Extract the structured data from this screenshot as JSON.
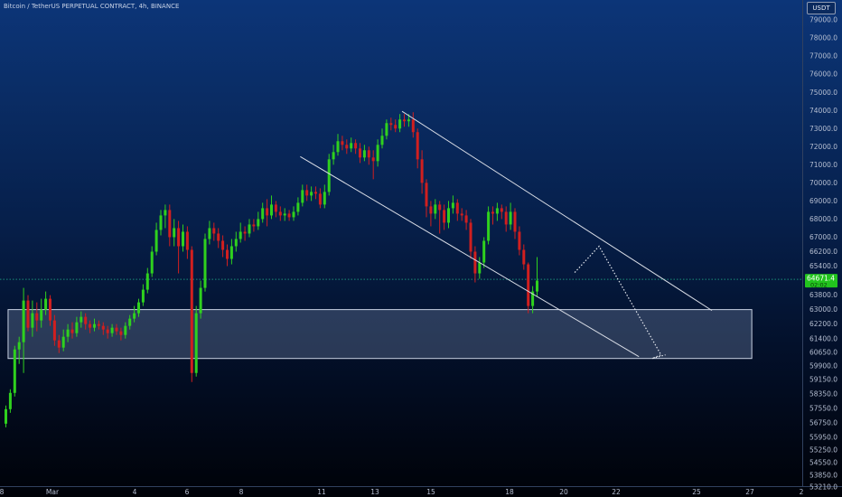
{
  "header": {
    "title": "Bitcoin / TetherUS PERPETUAL CONTRACT, 4h, BINANCE",
    "currency": "USDT"
  },
  "colors": {
    "up": "#2fd11e",
    "down": "#d11f1f",
    "channel": "#d9dde6",
    "zone_fill": "#6d7fa0",
    "price_line": "#1b8f7a",
    "price_label_bg": "#22c41e"
  },
  "chart_data": {
    "type": "candlestick",
    "y_axis": {
      "min": 52600,
      "max": 79600,
      "ticks": [
        79000.0,
        78000.0,
        77000.0,
        76000.0,
        75000.0,
        74000.0,
        73000.0,
        72000.0,
        71000.0,
        70000.0,
        69000.0,
        68000.0,
        67000.0,
        66200.0,
        65400.0,
        63800.0,
        63000.0,
        62200.0,
        61400.0,
        60650.0,
        59900.0,
        59150.0,
        58350.0,
        57550.0,
        56750.0,
        55950.0,
        55250.0,
        54550.0,
        53850.0,
        53210.0
      ]
    },
    "x_axis": {
      "tick_labels": [
        "8",
        "Mar",
        "4",
        "6",
        "8",
        "11",
        "13",
        "15",
        "18",
        "20",
        "22",
        "25",
        "27",
        "2"
      ]
    },
    "current_price": {
      "value": "64671.4",
      "countdown": "02:02",
      "level": 64671.4
    },
    "support_zone": {
      "top": 63000,
      "bottom": 60300,
      "from": 0.5,
      "to": 168.5
    },
    "channel": {
      "upper": [
        [
          89.5,
          73950
        ],
        [
          159.5,
          62950
        ]
      ],
      "lower": [
        [
          66.5,
          71450
        ],
        [
          143,
          60400
        ]
      ]
    },
    "projection": [
      [
        128.5,
        65050
      ],
      [
        134,
        66500
      ],
      [
        148,
        60500
      ],
      [
        146,
        60300
      ],
      [
        149,
        60500
      ]
    ],
    "candles": [
      [
        56700,
        57500,
        56500,
        57700
      ],
      [
        57500,
        58400,
        57300,
        58600
      ],
      [
        58400,
        60800,
        58200,
        61000
      ],
      [
        60800,
        61200,
        60000,
        61500
      ],
      [
        61200,
        63500,
        59500,
        64200
      ],
      [
        63500,
        62000,
        61800,
        63800
      ],
      [
        62000,
        62800,
        61500,
        63500
      ],
      [
        62800,
        62400,
        61800,
        63400
      ],
      [
        62400,
        63000,
        62000,
        63600
      ],
      [
        63000,
        63600,
        62700,
        64000
      ],
      [
        63600,
        62400,
        62100,
        63800
      ],
      [
        62400,
        61300,
        61000,
        62700
      ],
      [
        61300,
        60900,
        60600,
        61600
      ],
      [
        60900,
        61500,
        60700,
        61900
      ],
      [
        61500,
        61900,
        61200,
        62200
      ],
      [
        61900,
        61700,
        61400,
        62300
      ],
      [
        61700,
        62300,
        61500,
        62600
      ],
      [
        62300,
        62600,
        62000,
        62900
      ],
      [
        62600,
        62200,
        61900,
        62800
      ],
      [
        62200,
        62000,
        61700,
        62400
      ],
      [
        62000,
        62200,
        61800,
        62500
      ],
      [
        62200,
        62100,
        61900,
        62400
      ],
      [
        62100,
        61900,
        61600,
        62300
      ],
      [
        61900,
        61700,
        61400,
        62100
      ],
      [
        61700,
        62000,
        61500,
        62200
      ],
      [
        62000,
        61800,
        61600,
        62200
      ],
      [
        61800,
        61600,
        61300,
        62000
      ],
      [
        61600,
        62100,
        61400,
        62300
      ],
      [
        62100,
        62500,
        61900,
        62700
      ],
      [
        62500,
        62800,
        62300,
        63200
      ],
      [
        62800,
        63400,
        62600,
        63600
      ],
      [
        63400,
        64100,
        63200,
        64400
      ],
      [
        64100,
        65000,
        63900,
        65300
      ],
      [
        65000,
        66200,
        64800,
        66500
      ],
      [
        66200,
        67400,
        66000,
        67800
      ],
      [
        67400,
        68200,
        67100,
        68500
      ],
      [
        68200,
        68500,
        67500,
        68800
      ],
      [
        68500,
        67000,
        66500,
        68800
      ],
      [
        67000,
        67500,
        66500,
        68000
      ],
      [
        67500,
        66500,
        65000,
        67900
      ],
      [
        66500,
        67300,
        66200,
        67700
      ],
      [
        67300,
        66300,
        65800,
        67600
      ],
      [
        66300,
        59500,
        59000,
        66500
      ],
      [
        59500,
        62800,
        59300,
        63200
      ],
      [
        62800,
        64200,
        62500,
        64600
      ],
      [
        64200,
        66900,
        64000,
        67200
      ],
      [
        66900,
        67500,
        66600,
        67900
      ],
      [
        67500,
        67200,
        66800,
        67800
      ],
      [
        67200,
        66800,
        66400,
        67500
      ],
      [
        66800,
        66300,
        65900,
        67100
      ],
      [
        66300,
        65800,
        65400,
        66600
      ],
      [
        65800,
        66500,
        65500,
        66900
      ],
      [
        66500,
        66900,
        66200,
        67300
      ],
      [
        66900,
        67300,
        66700,
        67800
      ],
      [
        67300,
        67200,
        66800,
        67600
      ],
      [
        67200,
        67700,
        67000,
        68000
      ],
      [
        67700,
        67600,
        67300,
        68000
      ],
      [
        67600,
        68000,
        67400,
        68400
      ],
      [
        68000,
        68600,
        67800,
        68900
      ],
      [
        68600,
        68200,
        67600,
        69100
      ],
      [
        68200,
        68800,
        68000,
        69300
      ],
      [
        68800,
        68400,
        68100,
        69000
      ],
      [
        68400,
        68200,
        67900,
        68700
      ],
      [
        68200,
        68300,
        67900,
        68600
      ],
      [
        68300,
        68100,
        67900,
        68500
      ],
      [
        68100,
        68400,
        67900,
        68700
      ],
      [
        68400,
        68900,
        68200,
        69200
      ],
      [
        68900,
        69600,
        68700,
        69900
      ],
      [
        69600,
        69300,
        69000,
        69900
      ],
      [
        69300,
        69500,
        69000,
        69800
      ],
      [
        69500,
        69400,
        69100,
        69800
      ],
      [
        69400,
        68800,
        68600,
        69700
      ],
      [
        68800,
        69500,
        68600,
        69900
      ],
      [
        69500,
        71300,
        69300,
        71600
      ],
      [
        71300,
        71700,
        71000,
        72100
      ],
      [
        71700,
        72300,
        71500,
        72700
      ],
      [
        72300,
        72100,
        71800,
        72600
      ],
      [
        72100,
        71900,
        71600,
        72400
      ],
      [
        71900,
        72200,
        71700,
        72500
      ],
      [
        72200,
        71900,
        71600,
        72400
      ],
      [
        71900,
        71400,
        71100,
        72200
      ],
      [
        71400,
        71800,
        71200,
        72100
      ],
      [
        71800,
        71400,
        71000,
        72000
      ],
      [
        71400,
        71200,
        70200,
        71800
      ],
      [
        71200,
        72100,
        70900,
        72400
      ],
      [
        72100,
        72600,
        71900,
        73000
      ],
      [
        72600,
        73300,
        72400,
        73500
      ],
      [
        73300,
        73200,
        72900,
        73600
      ],
      [
        73200,
        73000,
        72800,
        73500
      ],
      [
        73000,
        73500,
        72800,
        73800
      ],
      [
        73500,
        73400,
        73100,
        73800
      ],
      [
        73400,
        73500,
        73100,
        73800
      ],
      [
        73500,
        72800,
        72500,
        73900
      ],
      [
        72800,
        71300,
        70800,
        73000
      ],
      [
        71300,
        70000,
        69400,
        71800
      ],
      [
        70000,
        68700,
        68100,
        70200
      ],
      [
        68700,
        68300,
        67600,
        69000
      ],
      [
        68300,
        68800,
        68000,
        69100
      ],
      [
        68800,
        68500,
        67200,
        69000
      ],
      [
        68500,
        67800,
        67400,
        68800
      ],
      [
        67800,
        68600,
        67500,
        69000
      ],
      [
        68600,
        68900,
        68300,
        69300
      ],
      [
        68900,
        68300,
        67900,
        69100
      ],
      [
        68300,
        68200,
        67900,
        68600
      ],
      [
        68200,
        67800,
        67400,
        68500
      ],
      [
        67800,
        66200,
        65800,
        68000
      ],
      [
        66200,
        65000,
        64500,
        66500
      ],
      [
        65000,
        65600,
        64700,
        65900
      ],
      [
        65600,
        66800,
        65300,
        67000
      ],
      [
        66800,
        68400,
        66600,
        68700
      ],
      [
        68400,
        68300,
        67700,
        68700
      ],
      [
        68300,
        68600,
        67900,
        68900
      ],
      [
        68600,
        68400,
        68000,
        68800
      ],
      [
        68400,
        67700,
        67300,
        68700
      ],
      [
        67700,
        68400,
        67400,
        68900
      ],
      [
        68400,
        67300,
        66900,
        68600
      ],
      [
        67300,
        66300,
        66000,
        67600
      ],
      [
        66300,
        65500,
        65200,
        66600
      ],
      [
        65500,
        63200,
        62800,
        65600
      ],
      [
        63200,
        64000,
        62800,
        64300
      ],
      [
        64000,
        64600,
        63700,
        65900
      ]
    ]
  }
}
